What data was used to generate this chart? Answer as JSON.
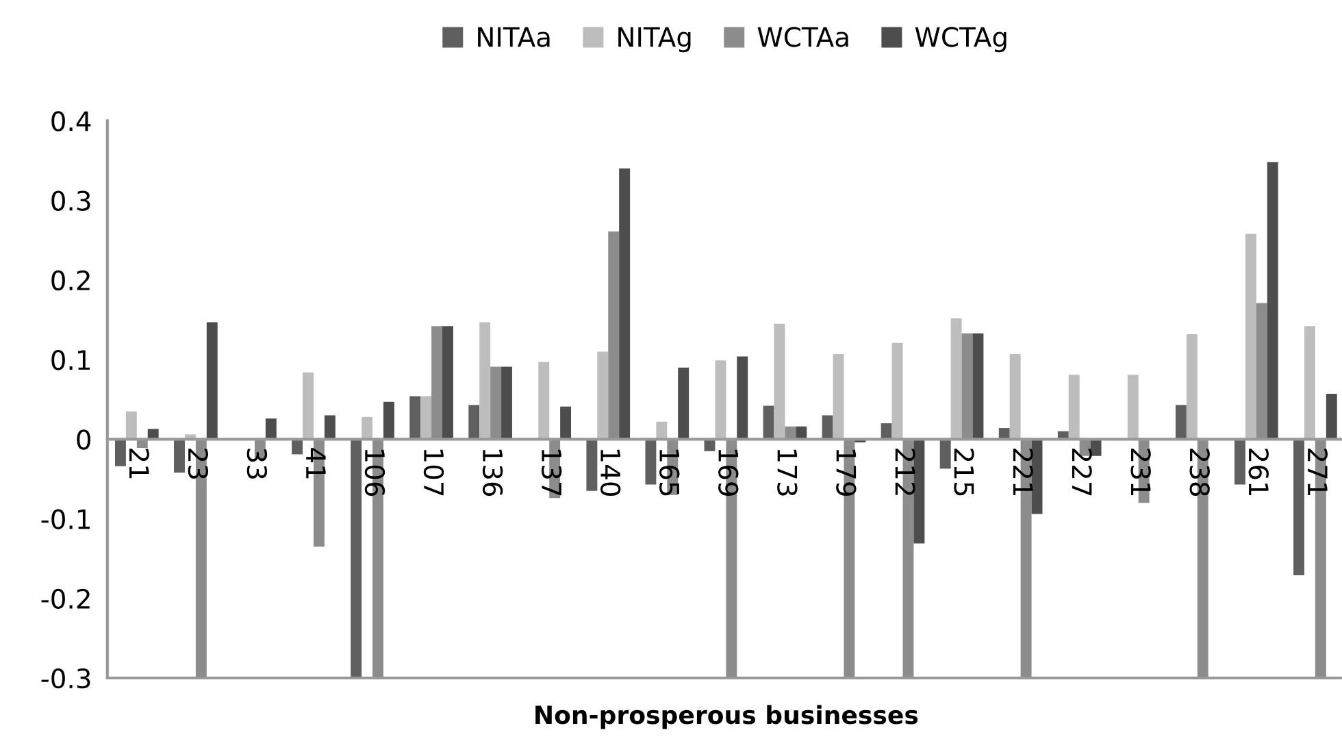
{
  "chart_data": {
    "type": "bar",
    "xlabel": "Non-prosperous businesses",
    "categories": [
      "21",
      "23",
      "33",
      "41",
      "106",
      "107",
      "136",
      "137",
      "140",
      "165",
      "169",
      "173",
      "179",
      "212",
      "215",
      "221",
      "227",
      "231",
      "238",
      "261",
      "271"
    ],
    "series": [
      {
        "name": "NITAa",
        "color": "#5f5f5f",
        "values": [
          -0.034,
          -0.042,
          null,
          -0.019,
          -0.3,
          0.054,
          0.043,
          0,
          -0.065,
          -0.057,
          -0.015,
          0.042,
          0.03,
          0.02,
          -0.037,
          0.014,
          0.01,
          0,
          0.043,
          -0.057,
          -0.171
        ]
      },
      {
        "name": "NITAg",
        "color": "#bdbdbd",
        "values": [
          0.035,
          0.006,
          null,
          0.084,
          0.028,
          0.054,
          0.147,
          0.097,
          0.11,
          0.022,
          0.099,
          0.145,
          0.107,
          0.121,
          0.152,
          0.107,
          0.081,
          0.081,
          0.132,
          0.258,
          0.142
        ]
      },
      {
        "name": "WCTAa",
        "color": "#8c8c8c",
        "values": [
          -0.011,
          -0.3,
          -0.025,
          -0.135,
          -0.3,
          0.142,
          0.091,
          -0.074,
          0.261,
          -0.07,
          -0.3,
          0.016,
          -0.3,
          -0.3,
          0.133,
          -0.3,
          -0.021,
          -0.08,
          -0.3,
          0.171,
          -0.3
        ]
      },
      {
        "name": "WCTAg",
        "color": "#4d4d4d",
        "values": [
          0.013,
          0.147,
          0.026,
          0.03,
          0.047,
          0.142,
          0.091,
          0.041,
          0.34,
          0.09,
          0.104,
          0.016,
          -0.004,
          -0.131,
          0.133,
          -0.094,
          -0.021,
          0.001,
          0,
          0.348,
          0.057
        ]
      }
    ],
    "ylim": [
      -0.3,
      0.4
    ],
    "yticks": [
      -0.3,
      -0.2,
      -0.1,
      0,
      0.1,
      0.2,
      0.3,
      0.4
    ],
    "grid": false,
    "legend": "top"
  }
}
